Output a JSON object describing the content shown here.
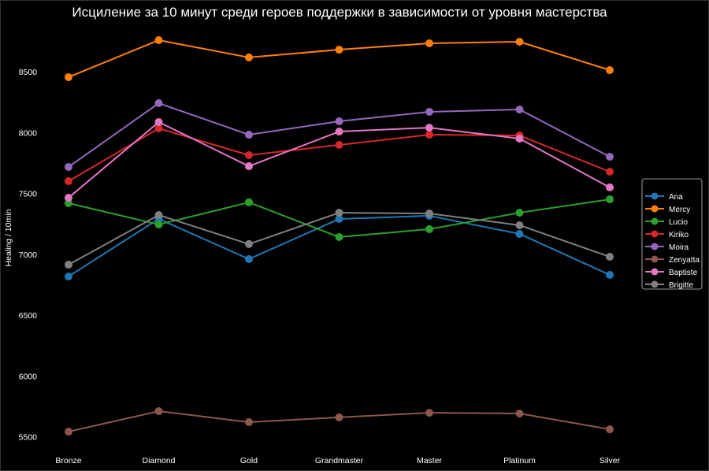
{
  "chart_data": {
    "type": "line",
    "title": "Исциление за 10 минут среди героев поддержки в зависимости от уровня мастерства",
    "xlabel": "",
    "ylabel": "Healing / 10min",
    "categories": [
      "Bronze",
      "Diamond",
      "Gold",
      "Grandmaster",
      "Master",
      "Platinum",
      "Silver"
    ],
    "ylim": [
      5380,
      8830
    ],
    "yticks": [
      5500,
      6000,
      6500,
      7000,
      7500,
      8000,
      8500
    ],
    "grid": false,
    "legend_position": "center-right",
    "series": [
      {
        "name": "Ana",
        "color": "#1f77b4",
        "values": [
          6817,
          7290,
          6960,
          7290,
          7316,
          7167,
          6830
        ]
      },
      {
        "name": "Mercy",
        "color": "#ff7f0e",
        "values": [
          8455,
          8759,
          8617,
          8681,
          8733,
          8746,
          8513
        ]
      },
      {
        "name": "Lucio",
        "color": "#2ca02c",
        "values": [
          7419,
          7244,
          7426,
          7141,
          7206,
          7341,
          7451
        ]
      },
      {
        "name": "Kiriko",
        "color": "#d62728",
        "values": [
          7600,
          8034,
          7814,
          7898,
          7982,
          7976,
          7678
        ]
      },
      {
        "name": "Moira",
        "color": "#9467bd",
        "values": [
          7717,
          8241,
          7982,
          8092,
          8170,
          8189,
          7801
        ]
      },
      {
        "name": "Zenyatta",
        "color": "#8c564b",
        "values": [
          5542,
          5710,
          5620,
          5659,
          5697,
          5691,
          5561
        ]
      },
      {
        "name": "Baptiste",
        "color": "#e377c2",
        "values": [
          7464,
          8086,
          7723,
          8008,
          8040,
          7950,
          7549
        ]
      },
      {
        "name": "Brigitte",
        "color": "#7f7f7f",
        "values": [
          6914,
          7322,
          7083,
          7341,
          7335,
          7238,
          6979
        ]
      }
    ]
  }
}
